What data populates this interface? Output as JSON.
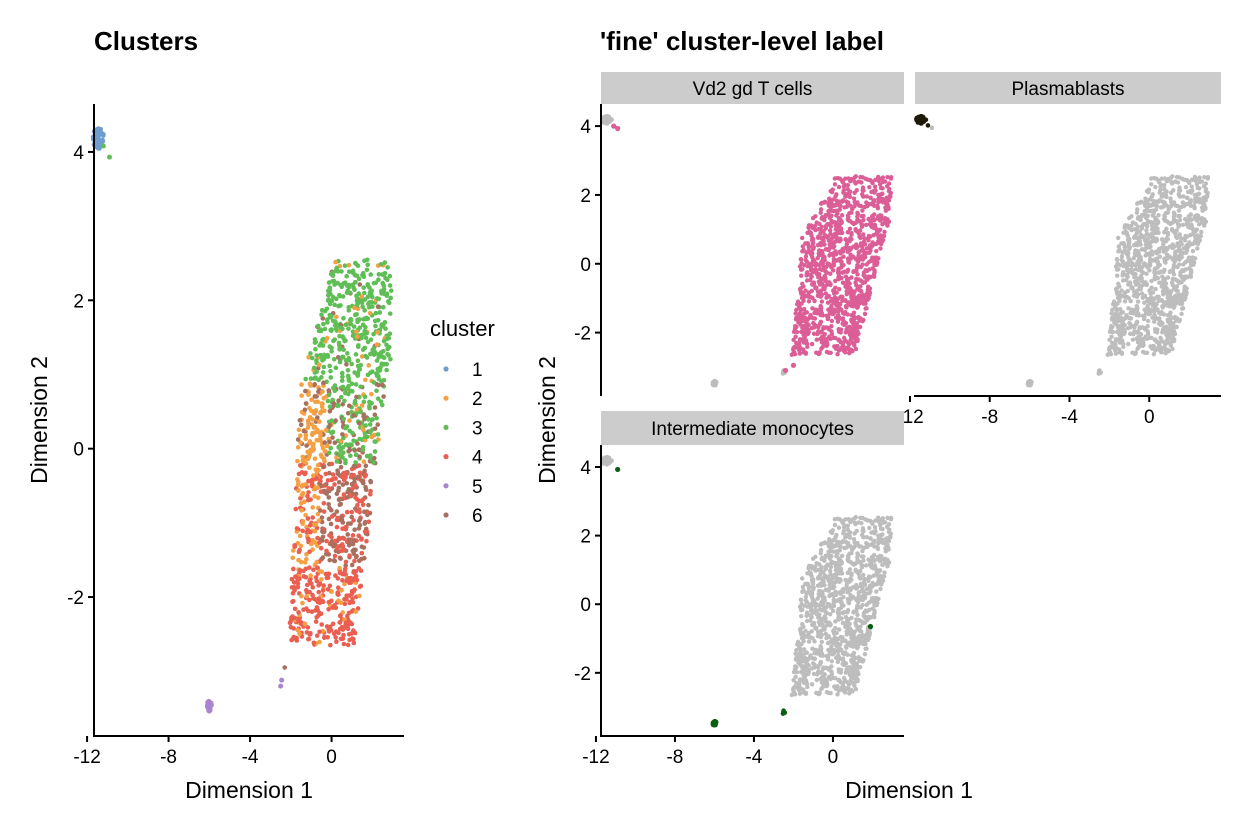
{
  "chart_data": [
    {
      "type": "scatter",
      "title": "Clusters",
      "xlabel": "Dimension 1",
      "ylabel": "Dimension 2",
      "xlim": [
        -12.2,
        3.8
      ],
      "ylim": [
        -3.9,
        4.7
      ],
      "xticks": [
        -12,
        -8,
        -4,
        0
      ],
      "yticks": [
        -2,
        0,
        2,
        4
      ],
      "xtick_labels": [
        "-12",
        "-8",
        "-4",
        "0"
      ],
      "ytick_labels": [
        "-2",
        "0",
        "2",
        "4"
      ],
      "grid": false,
      "legend": {
        "title": "cluster",
        "position": "right",
        "entries": [
          {
            "label": "1",
            "color": "#6f9ccf"
          },
          {
            "label": "2",
            "color": "#f4a043"
          },
          {
            "label": "3",
            "color": "#5fbe55"
          },
          {
            "label": "4",
            "color": "#ea5f51"
          },
          {
            "label": "5",
            "color": "#a987cf"
          },
          {
            "label": "6",
            "color": "#a7705f"
          }
        ]
      },
      "series": [
        {
          "name": "1",
          "color": "#6f9ccf",
          "regions": [
            {
              "x": [
                -11.7,
                -11.1
              ],
              "y": [
                4.05,
                4.35
              ],
              "n": 45
            }
          ]
        },
        {
          "name": "2",
          "color": "#f4a043",
          "regions": [
            {
              "x": [
                -2.0,
                0.4
              ],
              "y": [
                -1.4,
                1.7
              ],
              "n": 300
            }
          ]
        },
        {
          "name": "3",
          "color": "#5fbe55",
          "regions": [
            {
              "x": [
                0.0,
                3.0
              ],
              "y": [
                0.1,
                2.55
              ],
              "n": 380
            }
          ],
          "points": [
            {
              "x": -10.9,
              "y": 3.93
            },
            {
              "x": -11.2,
              "y": 4.08
            }
          ]
        },
        {
          "name": "4",
          "color": "#ea5f51",
          "regions": [
            {
              "x": [
                -2.0,
                1.2
              ],
              "y": [
                -2.65,
                -0.2
              ],
              "n": 450
            }
          ],
          "points": [
            {
              "x": -2.3,
              "y": -2.95
            }
          ]
        },
        {
          "name": "5",
          "color": "#a987cf",
          "regions": [
            {
              "x": [
                -6.15,
                -5.85
              ],
              "y": [
                -3.55,
                -3.38
              ],
              "n": 30
            }
          ],
          "points": [
            {
              "x": -2.45,
              "y": -3.12
            },
            {
              "x": -2.5,
              "y": -3.2
            }
          ]
        },
        {
          "name": "6",
          "color": "#a7705f",
          "regions": [
            {
              "x": [
                -0.8,
                1.8
              ],
              "y": [
                -1.8,
                0.4
              ],
              "n": 230
            }
          ]
        }
      ]
    },
    {
      "type": "scatter",
      "title": "'fine' cluster-level label",
      "xlabel": "Dimension 1",
      "ylabel": "Dimension 2",
      "xlim": [
        -12.2,
        3.8
      ],
      "ylim": [
        -3.9,
        4.7
      ],
      "xticks": [
        -12,
        -8,
        -4,
        0
      ],
      "yticks": [
        -2,
        0,
        2,
        4
      ],
      "xtick_labels": [
        "-12",
        "-8",
        "-4",
        "0"
      ],
      "ytick_labels": [
        "-2",
        "0",
        "2",
        "4"
      ],
      "grid": false,
      "background_color": "#bdbdbd",
      "facets": [
        {
          "label": "Vd2 gd T cells",
          "color": "#dc5e97",
          "highlight": "main-body",
          "extra_points": [
            {
              "x": -10.9,
              "y": 3.93
            },
            {
              "x": -11.1,
              "y": 4.0
            },
            {
              "x": -2.4,
              "y": -3.1
            },
            {
              "x": -2.0,
              "y": -2.95
            }
          ]
        },
        {
          "label": "Plasmablasts",
          "color": "#1e1a08",
          "highlight": "top-left-cluster"
        },
        {
          "label": "Intermediate monocytes",
          "color": "#0a5e14",
          "highlight": "bottom-clusters",
          "extra_points": [
            {
              "x": -10.9,
              "y": 3.93
            },
            {
              "x": 1.9,
              "y": -0.65
            }
          ]
        }
      ]
    }
  ]
}
